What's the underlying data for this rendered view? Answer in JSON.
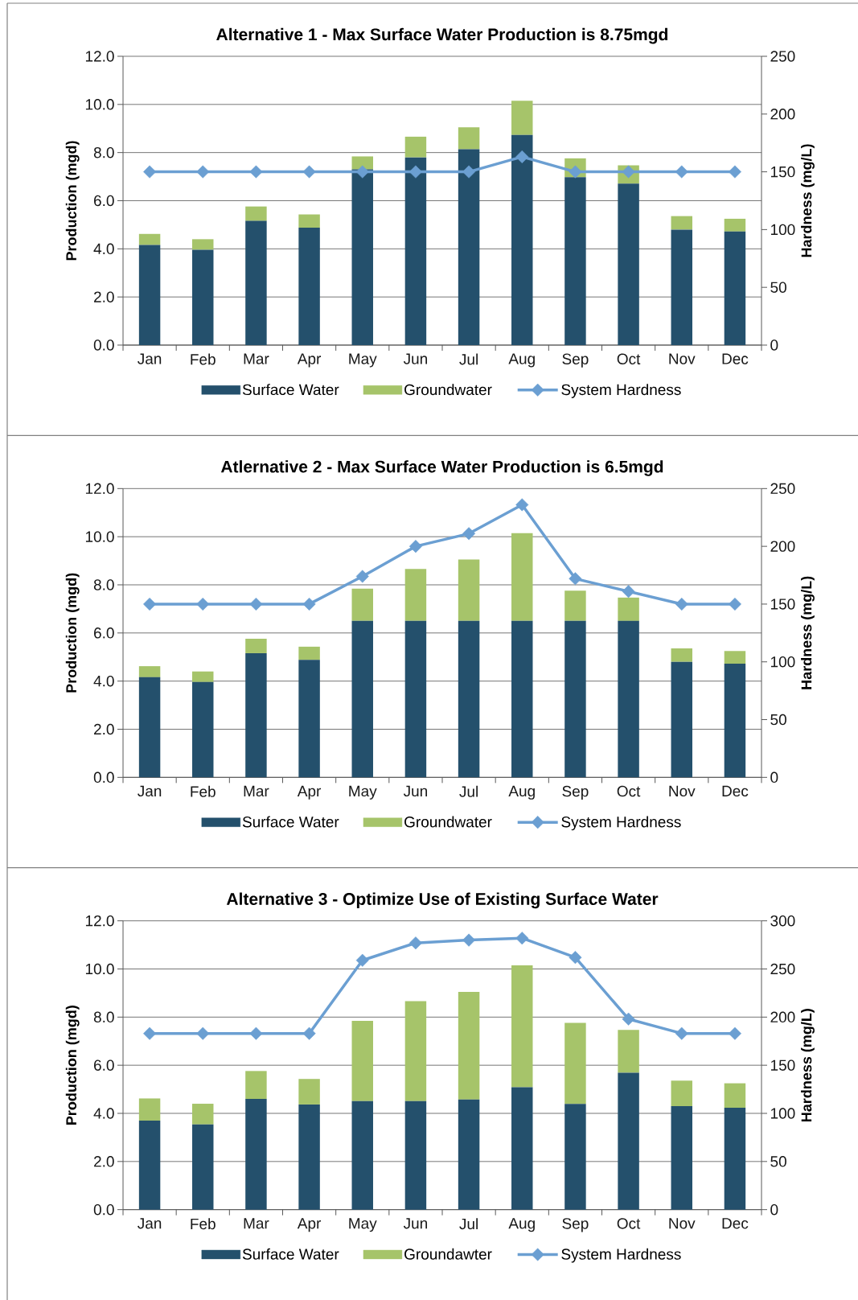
{
  "chart_data": [
    {
      "type": "bar",
      "title": "Alternative 1 - Max Surface Water Production is 8.75mgd",
      "categories": [
        "Jan",
        "Feb",
        "Mar",
        "Apr",
        "May",
        "Jun",
        "Jul",
        "Aug",
        "Sep",
        "Oct",
        "Nov",
        "Dec"
      ],
      "ylabel": "Production (mgd)",
      "y2label": "Hardness (mg/L)",
      "stacked": true,
      "grid": "y",
      "legend": "bottom",
      "ylim": [
        0,
        12
      ],
      "yticks": [
        {
          "value": 0,
          "label": "0.0"
        },
        {
          "value": 2,
          "label": "2.0"
        },
        {
          "value": 4,
          "label": "4.0"
        },
        {
          "value": 6,
          "label": "6.0"
        },
        {
          "value": 8,
          "label": "8.0"
        },
        {
          "value": 10,
          "label": "10.0"
        },
        {
          "value": 12,
          "label": "12.0"
        }
      ],
      "y2lim": [
        0,
        250
      ],
      "y2ticks": [
        0,
        50,
        100,
        150,
        200,
        250
      ],
      "series": [
        {
          "name": "Surface Water",
          "color": "#24506c",
          "values": [
            4.16,
            3.96,
            5.16,
            4.88,
            7.3,
            7.8,
            8.14,
            8.73,
            6.98,
            6.71,
            4.8,
            4.72
          ]
        },
        {
          "name": "Groundwater",
          "color": "#a6c46a",
          "values": [
            0.46,
            0.44,
            0.6,
            0.55,
            0.54,
            0.86,
            0.91,
            1.42,
            0.78,
            0.76,
            0.56,
            0.53
          ]
        },
        {
          "name": "System Hardness",
          "type": "line",
          "axis": "y2",
          "marker": "diamond",
          "color": "#6b9fd2",
          "values": [
            150,
            150,
            150,
            150,
            150,
            150,
            150,
            163,
            150,
            150,
            150,
            150
          ]
        }
      ]
    },
    {
      "type": "bar",
      "title": "Atlernative 2 - Max Surface Water Production is 6.5mgd",
      "categories": [
        "Jan",
        "Feb",
        "Mar",
        "Apr",
        "May",
        "Jun",
        "Jul",
        "Aug",
        "Sep",
        "Oct",
        "Nov",
        "Dec"
      ],
      "ylabel": "Production (mgd)",
      "y2label": "Hardness (mg/L)",
      "stacked": true,
      "grid": "y",
      "legend": "bottom",
      "ylim": [
        0,
        12
      ],
      "yticks": [
        {
          "value": 0,
          "label": "0.0"
        },
        {
          "value": 2,
          "label": "2.0"
        },
        {
          "value": 4,
          "label": "4.0"
        },
        {
          "value": 6,
          "label": "6.0"
        },
        {
          "value": 8,
          "label": "8.0"
        },
        {
          "value": 10,
          "label": "10.0"
        },
        {
          "value": 12,
          "label": "12.0"
        }
      ],
      "y2lim": [
        0,
        250
      ],
      "y2ticks": [
        0,
        50,
        100,
        150,
        200,
        250
      ],
      "series": [
        {
          "name": "Surface Water",
          "color": "#24506c",
          "values": [
            4.16,
            3.96,
            5.16,
            4.88,
            6.5,
            6.5,
            6.5,
            6.5,
            6.5,
            6.5,
            4.8,
            4.72
          ]
        },
        {
          "name": "Groundwater",
          "color": "#a6c46a",
          "values": [
            0.46,
            0.44,
            0.6,
            0.55,
            1.34,
            2.16,
            2.55,
            3.65,
            1.26,
            0.97,
            0.56,
            0.53
          ]
        },
        {
          "name": "System Hardness",
          "type": "line",
          "axis": "y2",
          "marker": "diamond",
          "color": "#6b9fd2",
          "values": [
            150,
            150,
            150,
            150,
            174,
            200,
            211,
            236,
            172,
            161,
            150,
            150
          ]
        }
      ]
    },
    {
      "type": "bar",
      "title": "Alternative 3 - Optimize Use of Existing Surface Water",
      "categories": [
        "Jan",
        "Feb",
        "Mar",
        "Apr",
        "May",
        "Jun",
        "Jul",
        "Aug",
        "Sep",
        "Oct",
        "Nov",
        "Dec"
      ],
      "ylabel": "Production (mgd)",
      "y2label": "Hardness (mg/L)",
      "stacked": true,
      "grid": "y",
      "legend": "bottom",
      "ylim": [
        0,
        12
      ],
      "yticks": [
        {
          "value": 0,
          "label": "0.0"
        },
        {
          "value": 2,
          "label": "2.0"
        },
        {
          "value": 4,
          "label": "4.0"
        },
        {
          "value": 6,
          "label": "6.0"
        },
        {
          "value": 8,
          "label": "8.0"
        },
        {
          "value": 10,
          "label": "10.0"
        },
        {
          "value": 12,
          "label": "12.0"
        }
      ],
      "y2lim": [
        0,
        300
      ],
      "y2ticks": [
        0,
        50,
        100,
        150,
        200,
        250,
        300
      ],
      "series": [
        {
          "name": "Surface Water",
          "color": "#24506c",
          "values": [
            3.7,
            3.54,
            4.6,
            4.37,
            4.51,
            4.51,
            4.58,
            5.09,
            4.39,
            5.69,
            4.3,
            4.23
          ]
        },
        {
          "name": "Groundawter",
          "color": "#a6c46a",
          "values": [
            0.92,
            0.86,
            1.16,
            1.06,
            3.33,
            4.15,
            4.47,
            5.06,
            3.37,
            1.78,
            1.06,
            1.02
          ]
        },
        {
          "name": "System Hardness",
          "type": "line",
          "axis": "y2",
          "marker": "diamond",
          "color": "#6b9fd2",
          "values": [
            183,
            183,
            183,
            183,
            259,
            277,
            280,
            282,
            262,
            198,
            183,
            183
          ]
        }
      ]
    }
  ]
}
